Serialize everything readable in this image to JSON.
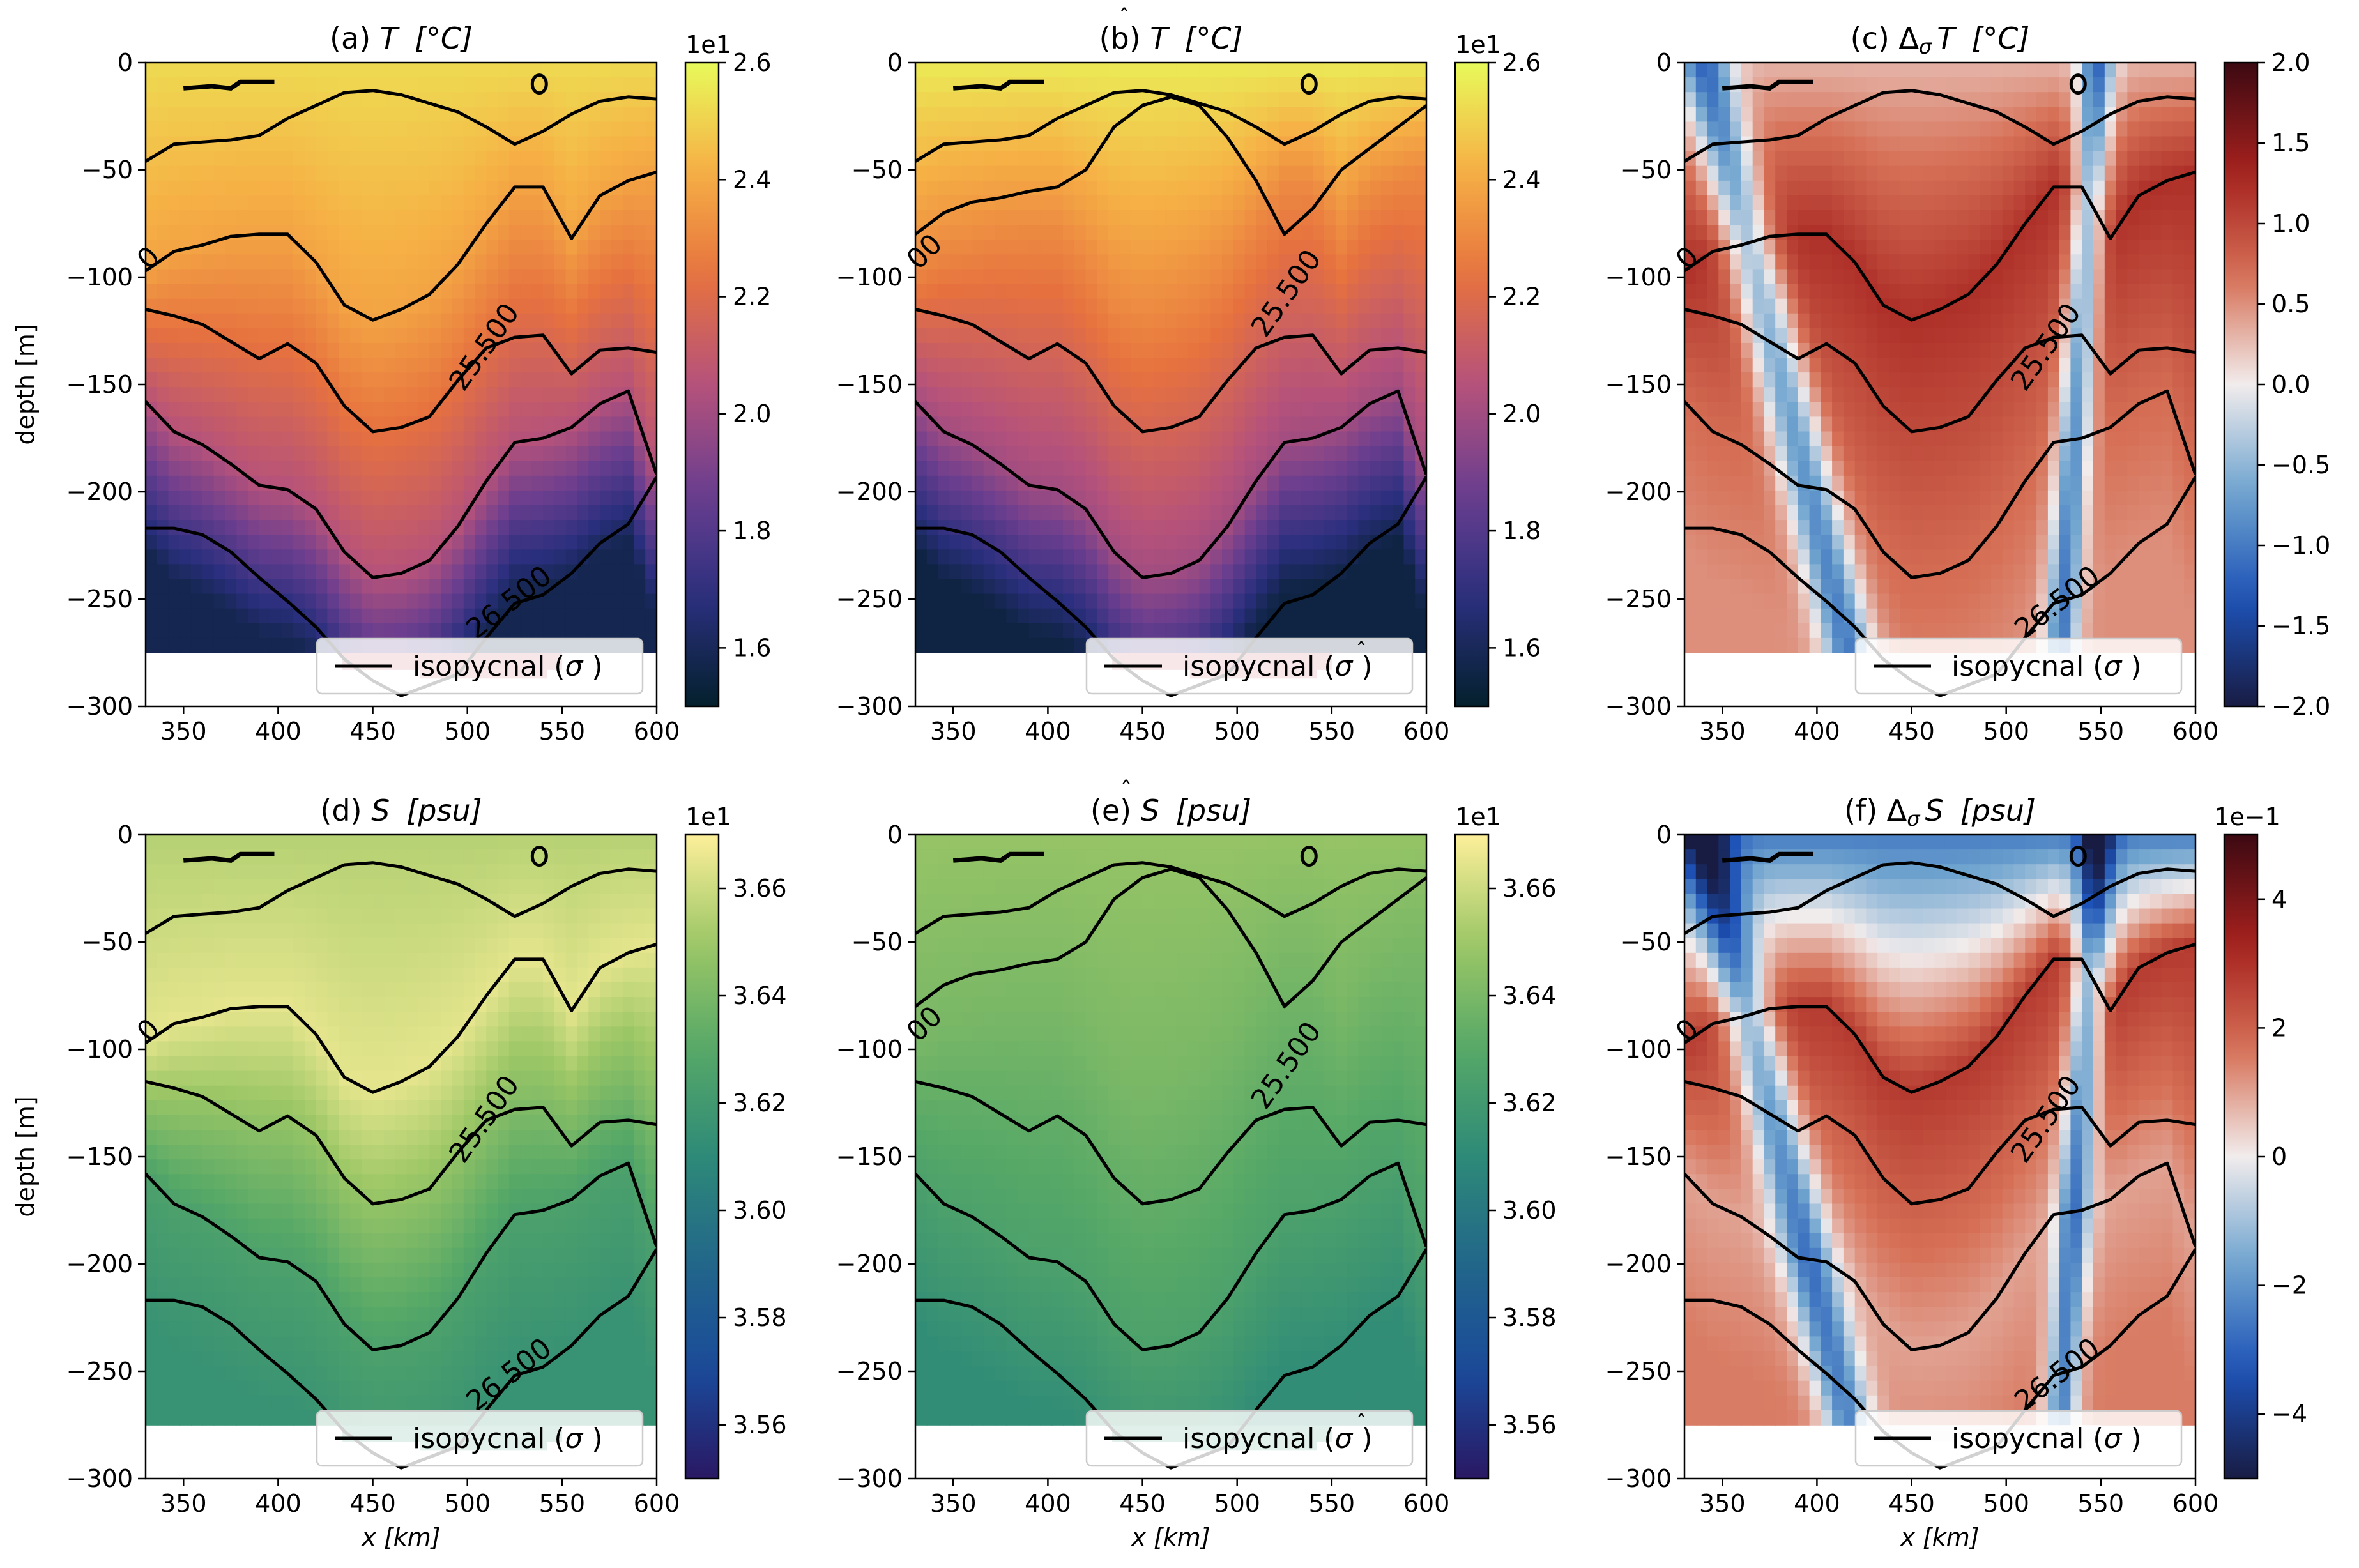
{
  "figure": {
    "width_label": "3693x2455"
  },
  "chart_data": [
    {
      "id": "a",
      "type": "heatmap",
      "title_prefix": "(a) ",
      "title_var": "T",
      "title_hat": false,
      "title_delta": false,
      "title_unit": "[°C]",
      "xlabel": "",
      "ylabel": "depth [m]",
      "xlim": [
        330,
        600
      ],
      "ylim": [
        -300,
        0
      ],
      "xticks": [
        350,
        400,
        450,
        500,
        550,
        600
      ],
      "yticks": [
        0,
        -50,
        -100,
        -150,
        -200,
        -250,
        -300
      ],
      "colormap": "thermal",
      "colorbar": {
        "min": 1.5,
        "max": 2.6,
        "ticks": [
          1.6,
          1.8,
          2.0,
          2.2,
          2.4,
          2.6
        ],
        "labels": [
          "1.6",
          "1.8",
          "2.0",
          "2.2",
          "2.4",
          "2.6"
        ],
        "offset": "1e1"
      },
      "field": {
        "surface": 2.52,
        "thermo_low": 2.38,
        "mid": 2.05,
        "deep": 1.58,
        "anomaly": 0
      },
      "legend": {
        "label_prefix": "isopycnal (",
        "symbol": "σ",
        "hat": false,
        "label_suffix": " )",
        "location": "lower right"
      },
      "contour_labels": [
        {
          "text": "25.500",
          "x": 513,
          "y": -135,
          "angle": -55
        },
        {
          "text": "26.500",
          "x": 525,
          "y": -255,
          "angle": -38
        }
      ],
      "edge_label": "0"
    },
    {
      "id": "b",
      "type": "heatmap",
      "title_prefix": "(b) ",
      "title_var": "T",
      "title_hat": true,
      "title_delta": false,
      "title_unit": "[°C]",
      "xlabel": "",
      "ylabel": "",
      "xlim": [
        330,
        600
      ],
      "ylim": [
        -300,
        0
      ],
      "xticks": [
        350,
        400,
        450,
        500,
        550,
        600
      ],
      "yticks": [
        0,
        -50,
        -100,
        -150,
        -200,
        -250,
        -300
      ],
      "colormap": "thermal",
      "colorbar": {
        "min": 1.5,
        "max": 2.6,
        "ticks": [
          1.6,
          1.8,
          2.0,
          2.2,
          2.4,
          2.6
        ],
        "labels": [
          "1.6",
          "1.8",
          "2.0",
          "2.2",
          "2.4",
          "2.6"
        ],
        "offset": "1e1"
      },
      "field": {
        "surface": 2.56,
        "thermo_low": 2.3,
        "mid": 2.0,
        "deep": 1.55,
        "anomaly": 0
      },
      "legend": {
        "label_prefix": "isopycnal (",
        "symbol": "σ",
        "hat": true,
        "label_suffix": " )",
        "location": "lower right"
      },
      "contour_labels": [
        {
          "text": "25.500",
          "x": 530,
          "y": -110,
          "angle": -55
        }
      ],
      "edge_label": "00"
    },
    {
      "id": "c",
      "type": "heatmap",
      "title_prefix": "(c) ",
      "title_var": "T",
      "title_hat": false,
      "title_delta": true,
      "title_unit": "[°C]",
      "xlabel": "",
      "ylabel": "",
      "xlim": [
        330,
        600
      ],
      "ylim": [
        -300,
        0
      ],
      "xticks": [
        350,
        400,
        450,
        500,
        550,
        600
      ],
      "yticks": [
        0,
        -50,
        -100,
        -150,
        -200,
        -250,
        -300
      ],
      "colormap": "balance",
      "colorbar": {
        "min": -2.0,
        "max": 2.0,
        "ticks": [
          2.0,
          1.5,
          1.0,
          0.5,
          0.0,
          -0.5,
          -1.0,
          -1.5,
          -2.0
        ],
        "labels": [
          "2.0",
          "1.5",
          "1.0",
          "0.5",
          "0.0",
          "−0.5",
          "−1.0",
          "−1.5",
          "−2.0"
        ],
        "offset": ""
      },
      "field": {
        "surface": 0.3,
        "thermo_low": 1.2,
        "mid": 0.7,
        "deep": 0.5,
        "anomaly": 1
      },
      "legend": {
        "label_prefix": "isopycnal (",
        "symbol": "σ",
        "hat": false,
        "label_suffix": " )",
        "location": "lower right"
      },
      "contour_labels": [
        {
          "text": "25.500",
          "x": 525,
          "y": -135,
          "angle": -55
        },
        {
          "text": "26.500",
          "x": 530,
          "y": -255,
          "angle": -38
        }
      ],
      "edge_label": "0"
    },
    {
      "id": "d",
      "type": "heatmap",
      "title_prefix": "(d) ",
      "title_var": "S",
      "title_hat": false,
      "title_delta": false,
      "title_unit": "[psu]",
      "xlabel": "x [km]",
      "ylabel": "depth [m]",
      "xlim": [
        330,
        600
      ],
      "ylim": [
        -300,
        0
      ],
      "xticks": [
        350,
        400,
        450,
        500,
        550,
        600
      ],
      "yticks": [
        0,
        -50,
        -100,
        -150,
        -200,
        -250,
        -300
      ],
      "colormap": "haline",
      "colorbar": {
        "min": 3.55,
        "max": 3.67,
        "ticks": [
          3.56,
          3.58,
          3.6,
          3.62,
          3.64,
          3.66
        ],
        "labels": [
          "3.56",
          "3.58",
          "3.60",
          "3.62",
          "3.64",
          "3.66"
        ],
        "offset": "1e1"
      },
      "field": {
        "surface": 3.655,
        "thermo_low": 3.665,
        "mid": 3.625,
        "deep": 3.615,
        "anomaly": 0
      },
      "legend": {
        "label_prefix": "isopycnal (",
        "symbol": "σ",
        "hat": false,
        "label_suffix": " )",
        "location": "lower right"
      },
      "contour_labels": [
        {
          "text": "25.500",
          "x": 513,
          "y": -135,
          "angle": -55
        },
        {
          "text": "26.500",
          "x": 525,
          "y": -255,
          "angle": -38
        }
      ],
      "edge_label": "0"
    },
    {
      "id": "e",
      "type": "heatmap",
      "title_prefix": "(e) ",
      "title_var": "S",
      "title_hat": true,
      "title_delta": false,
      "title_unit": "[psu]",
      "xlabel": "x [km]",
      "ylabel": "",
      "xlim": [
        330,
        600
      ],
      "ylim": [
        -300,
        0
      ],
      "xticks": [
        350,
        400,
        450,
        500,
        550,
        600
      ],
      "yticks": [
        0,
        -50,
        -100,
        -150,
        -200,
        -250,
        -300
      ],
      "colormap": "haline",
      "colorbar": {
        "min": 3.55,
        "max": 3.67,
        "ticks": [
          3.56,
          3.58,
          3.6,
          3.62,
          3.64,
          3.66
        ],
        "labels": [
          "3.56",
          "3.58",
          "3.60",
          "3.62",
          "3.64",
          "3.66"
        ],
        "offset": "1e1"
      },
      "field": {
        "surface": 3.648,
        "thermo_low": 3.64,
        "mid": 3.625,
        "deep": 3.612,
        "anomaly": 0
      },
      "legend": {
        "label_prefix": "isopycnal (",
        "symbol": "σ",
        "hat": true,
        "label_suffix": " )",
        "location": "lower right"
      },
      "contour_labels": [
        {
          "text": "25.500",
          "x": 530,
          "y": -110,
          "angle": -55
        }
      ],
      "edge_label": "00"
    },
    {
      "id": "f",
      "type": "heatmap",
      "title_prefix": "(f) ",
      "title_var": "S",
      "title_hat": false,
      "title_delta": true,
      "title_unit": "[psu]",
      "xlabel": "x [km]",
      "ylabel": "",
      "xlim": [
        330,
        600
      ],
      "ylim": [
        -300,
        0
      ],
      "xticks": [
        350,
        400,
        450,
        500,
        550,
        600
      ],
      "yticks": [
        0,
        -50,
        -100,
        -150,
        -200,
        -250,
        -300
      ],
      "colormap": "balance",
      "colorbar": {
        "min": -5,
        "max": 5,
        "ticks": [
          4,
          2,
          0,
          -2,
          -4
        ],
        "labels": [
          "4",
          "2",
          "0",
          "−2",
          "−4"
        ],
        "offset": "1e−1"
      },
      "field": {
        "surface": -2.5,
        "thermo_low": 2.8,
        "mid": 1.0,
        "deep": 1.5,
        "anomaly": 1
      },
      "legend": {
        "label_prefix": "isopycnal (",
        "symbol": "σ",
        "hat": false,
        "label_suffix": " )",
        "location": "lower right"
      },
      "contour_labels": [
        {
          "text": "25.500",
          "x": 525,
          "y": -135,
          "angle": -55
        },
        {
          "text": "26.500",
          "x": 530,
          "y": -255,
          "angle": -38
        }
      ],
      "edge_label": "0"
    }
  ],
  "isopycnals": {
    "x": [
      330,
      345,
      360,
      375,
      390,
      405,
      420,
      435,
      450,
      465,
      480,
      495,
      510,
      525,
      540,
      555,
      570,
      585,
      600
    ],
    "c1": [
      -46,
      -38,
      -37,
      -36,
      -34,
      -26,
      -20,
      -14,
      -13,
      -15,
      -19,
      -23,
      -30,
      -38,
      -32,
      -24,
      -18,
      -16,
      -17
    ],
    "c2": [
      -97,
      -88,
      -85,
      -81,
      -80,
      -80,
      -93,
      -113,
      -120,
      -115,
      -108,
      -94,
      -75,
      -58,
      -58,
      -82,
      -62,
      -55,
      -51
    ],
    "c3": [
      -115,
      -118,
      -122,
      -130,
      -138,
      -131,
      -140,
      -160,
      -172,
      -170,
      -165,
      -148,
      -133,
      -128,
      -127,
      -145,
      -134,
      -133,
      -135
    ],
    "c4": [
      -158,
      -172,
      -178,
      -187,
      -197,
      -199,
      -208,
      -228,
      -240,
      -238,
      -232,
      -216,
      -195,
      -177,
      -175,
      -170,
      -159,
      -153,
      -192
    ],
    "c5": [
      -217,
      -217,
      -220,
      -228,
      -240,
      -251,
      -263,
      -278,
      -288,
      -295,
      -290,
      -285,
      -268,
      -252,
      -248,
      -238,
      -224,
      -215,
      -193
    ],
    "c1b": [
      -80,
      -70,
      -65,
      -63,
      -60,
      -58,
      -50,
      -30,
      -20,
      -16,
      -20,
      -35,
      -55,
      -80,
      -68,
      -50,
      -40,
      -30,
      -20
    ]
  }
}
